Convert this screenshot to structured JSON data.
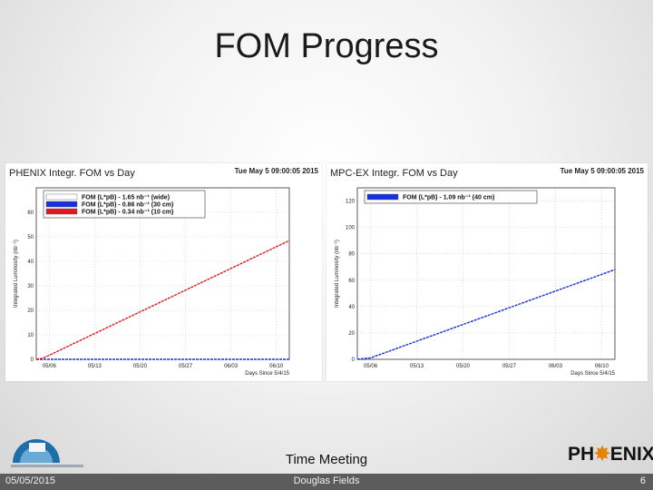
{
  "slide": {
    "title": "FOM Progress",
    "meeting": "Time Meeting",
    "footer": {
      "date": "05/05/2015",
      "author": "Douglas Fields",
      "page": "6"
    }
  },
  "logo_right": {
    "prefix": "PH",
    "suffix": "ENIX",
    "flare_color": "#e8830a"
  },
  "colors": {
    "red": "#e0181f",
    "blue": "#1431e0",
    "grid": "#c8c8c8"
  },
  "chart_data": [
    {
      "type": "line",
      "title": "PHENIX Integr. FOM vs Day",
      "date": "Tue May  5 09:00:05 2015",
      "xlabel": "Days Since 5/4/15",
      "ylabel": "Integrated Luminosity (nb⁻¹)",
      "x_ticks": [
        "05/06",
        "05/13",
        "05/20",
        "05/27",
        "06/03",
        "06/10"
      ],
      "xlim": [
        0,
        39
      ],
      "ylim": [
        0,
        70
      ],
      "y_ticks": [
        "0",
        "10",
        "20",
        "30",
        "40",
        "50",
        "60"
      ],
      "legend": [
        "FOM (L*pB) - 1.65 nb⁻¹ (wide)",
        "FOM (L*pB) - 0.86 nb⁻¹ (30 cm)",
        "FOM (L*pB) - 0.34 nb⁻¹ (10 cm)"
      ],
      "series": [
        {
          "color": "white",
          "x": [
            0,
            39
          ],
          "y": [
            0,
            0
          ]
        },
        {
          "color": "blue",
          "x": [
            0,
            39
          ],
          "y": [
            0,
            0
          ]
        },
        {
          "color": "red",
          "x": [
            0,
            1,
            2,
            39
          ],
          "y": [
            0,
            0.5,
            1.65,
            48.5
          ]
        }
      ]
    },
    {
      "type": "line",
      "title": "MPC-EX Integr. FOM vs Day",
      "date": "Tue May  5 09:00:05 2015",
      "xlabel": "Days Since 5/4/15",
      "ylabel": "Integrated Luminosity (nb⁻¹)",
      "x_ticks": [
        "05/06",
        "05/13",
        "05/20",
        "05/27",
        "06/03",
        "06/10"
      ],
      "xlim": [
        0,
        39
      ],
      "ylim": [
        0,
        130
      ],
      "y_ticks": [
        "0",
        "20",
        "40",
        "60",
        "80",
        "100",
        "120"
      ],
      "legend": [
        "FOM (L*pB) - 1.09 nb⁻¹ (40 cm)"
      ],
      "series": [
        {
          "color": "blue",
          "x": [
            0,
            2,
            39
          ],
          "y": [
            0,
            1.09,
            68
          ]
        }
      ]
    }
  ]
}
